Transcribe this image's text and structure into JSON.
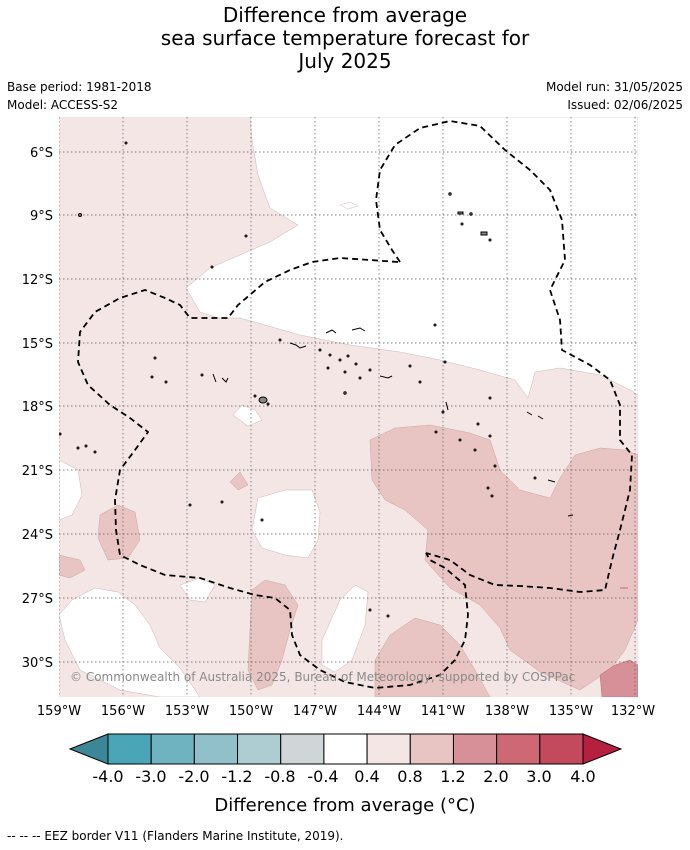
{
  "title": {
    "line1": "Difference from average",
    "line2": "sea surface temperature forecast for",
    "line3": "July 2025"
  },
  "meta": {
    "base_period": "Base period: 1981-2018",
    "model": "Model: ACCESS-S2",
    "model_run": "Model run: 31/05/2025",
    "issued": "Issued: 02/06/2025"
  },
  "map": {
    "lat_labels": [
      "6°S",
      "9°S",
      "12°S",
      "15°S",
      "18°S",
      "21°S",
      "24°S",
      "27°S",
      "30°S"
    ],
    "lon_labels": [
      "159°W",
      "156°W",
      "153°W",
      "150°W",
      "147°W",
      "144°W",
      "141°W",
      "138°W",
      "135°W",
      "132°W"
    ],
    "copyright": "© Commonwealth of Australia 2025, Bureau of Meteorology, supported by COSPPac"
  },
  "colorbar": {
    "ticks": [
      "-4.0",
      "-3.0",
      "-2.0",
      "-1.2",
      "-0.8",
      "-0.4",
      "0.4",
      "0.8",
      "1.2",
      "2.0",
      "3.0",
      "4.0"
    ],
    "colors": [
      "#4aa5b6",
      "#6fb2c0",
      "#91c0ca",
      "#adcdd2",
      "#d0d6d7",
      "#ffffff",
      "#f4e6e5",
      "#e8c5c2",
      "#d79097",
      "#cd6874",
      "#c24a5c"
    ],
    "low_extend_color": "#3c8795",
    "high_extend_color": "#b5203f",
    "label": "Difference from average (°C)"
  },
  "footnote": "-- -- -- EEZ border V11 (Flanders Marine Institute, 2019)."
}
